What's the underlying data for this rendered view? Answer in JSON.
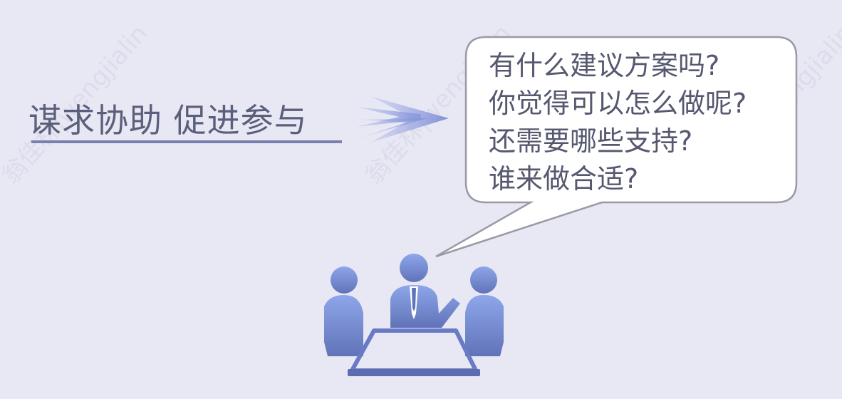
{
  "heading": "谋求协助  促进参与",
  "speech_bubble": {
    "lines": [
      "有什么建议方案吗?",
      "你觉得可以怎么做呢?",
      "还需要哪些支持?",
      "谁来做合适?"
    ]
  },
  "icons": {
    "arrow": "arrow-right-icon",
    "meeting": "meeting-people-icon"
  },
  "colors": {
    "background": "#e8e8f4",
    "accent": "#7f8fd6",
    "text": "#5b5f7c"
  },
  "watermark_text": "翁佳林|wengjialin"
}
